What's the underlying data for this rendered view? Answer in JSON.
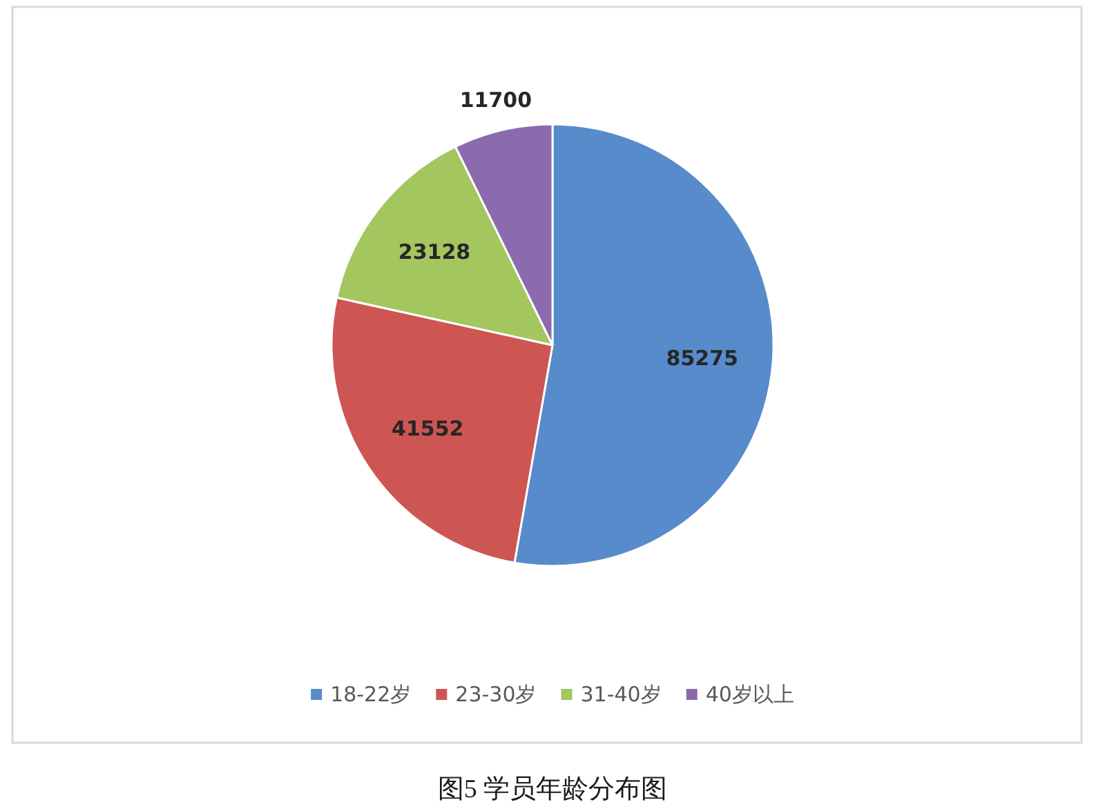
{
  "chart_data": {
    "type": "pie",
    "title": "图5 学员年龄分布图",
    "categories": [
      "18-22岁",
      "23-30岁",
      "31-40岁",
      "40岁以上"
    ],
    "values": [
      85275,
      41552,
      23128,
      11700
    ],
    "colors": [
      "#588bcb",
      "#cd5652",
      "#a4c65e",
      "#8b6aad"
    ],
    "data_labels": true,
    "legend": "bottom"
  }
}
